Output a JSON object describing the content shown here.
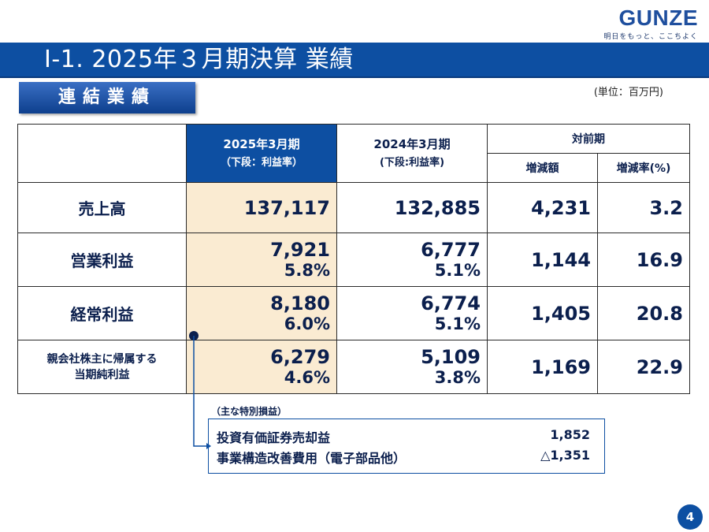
{
  "brand": {
    "name": "GUNZE",
    "tagline": "明日をもっと、ここちよく"
  },
  "title": "Ⅰ-1. 2025年３月期決算 業績",
  "section_label": "連結業績",
  "unit": "(単位：百万円)",
  "table": {
    "headers": {
      "current_period": "2025年3月期",
      "current_sub": "（下段：利益率）",
      "prior_period": "2024年3月期",
      "prior_sub": "(下段:利益率)",
      "yoy": "対前期",
      "change_amount": "増減額",
      "change_rate": "増減率(%)"
    },
    "rows": [
      {
        "label": "売上高",
        "current": "137,117",
        "current_margin": "",
        "prior": "132,885",
        "prior_margin": "",
        "change": "4,231",
        "rate": "3.2"
      },
      {
        "label": "営業利益",
        "current": "7,921",
        "current_margin": "5.8%",
        "prior": "6,777",
        "prior_margin": "5.1%",
        "change": "1,144",
        "rate": "16.9"
      },
      {
        "label": "経常利益",
        "current": "8,180",
        "current_margin": "6.0%",
        "prior": "6,774",
        "prior_margin": "5.1%",
        "change": "1,405",
        "rate": "20.8"
      },
      {
        "label_line1": "親会社株主に帰属する",
        "label_line2": "当期純利益",
        "current": "6,279",
        "current_margin": "4.6%",
        "prior": "5,109",
        "prior_margin": "3.8%",
        "change": "1,169",
        "rate": "22.9"
      }
    ]
  },
  "special": {
    "label": "（主な特別損益）",
    "items": [
      {
        "name": "投資有価証券売却益",
        "value": "1,852"
      },
      {
        "name": "事業構造改善費用（電子部品他）",
        "value": "△1,351"
      }
    ]
  },
  "page_number": "4",
  "colors": {
    "brand_blue": "#0d4fa2",
    "highlight_column": "#faebd2"
  }
}
